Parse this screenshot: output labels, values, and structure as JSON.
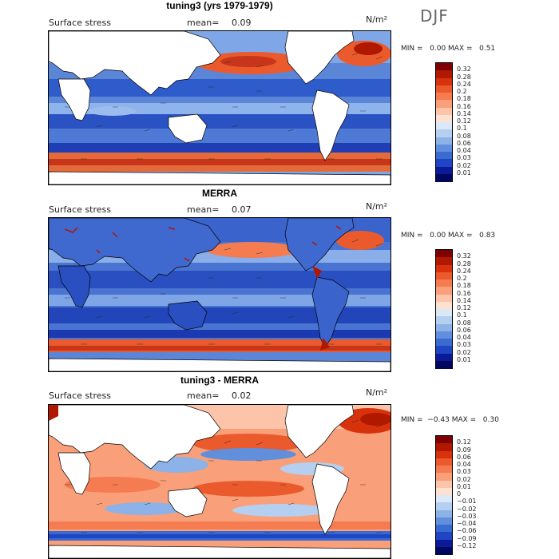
{
  "figure": {
    "season": "DJF",
    "panels": [
      {
        "title": "tuning3 (yrs 1979-1979)",
        "field": "Surface stress",
        "mean_label": "mean=",
        "mean_value": "0.09",
        "units": "N/m²",
        "stats_text": "MIN =   0.00 MAX =   0.51",
        "colorbar": {
          "labels": [
            "0.32",
            "0.28",
            "0.24",
            "0.2",
            "0.18",
            "0.16",
            "0.14",
            "0.12",
            "0.1",
            "0.08",
            "0.06",
            "0.04",
            "0.03",
            "0.02",
            "0.01"
          ],
          "colors": [
            "#7f0000",
            "#b01800",
            "#d8320c",
            "#ea5a2c",
            "#f47c50",
            "#f9a07a",
            "#fcc4a8",
            "#fde2d2",
            "#dbe8f7",
            "#b4cff0",
            "#8cb2e8",
            "#628fdc",
            "#3a6bd0",
            "#1f44c4",
            "#0a1a98",
            "#00085e"
          ]
        }
      },
      {
        "title": "MERRA",
        "field": "Surface stress",
        "mean_label": "mean=",
        "mean_value": "0.07",
        "units": "N/m²",
        "stats_text": "MIN =   0.00 MAX =   0.83",
        "colorbar": {
          "labels": [
            "0.32",
            "0.28",
            "0.24",
            "0.2",
            "0.18",
            "0.16",
            "0.14",
            "0.12",
            "0.1",
            "0.08",
            "0.06",
            "0.04",
            "0.03",
            "0.02",
            "0.01"
          ],
          "colors": [
            "#7f0000",
            "#b01800",
            "#d8320c",
            "#ea5a2c",
            "#f47c50",
            "#f9a07a",
            "#fcc4a8",
            "#fde2d2",
            "#dbe8f7",
            "#b4cff0",
            "#8cb2e8",
            "#628fdc",
            "#3a6bd0",
            "#1f44c4",
            "#0a1a98",
            "#00085e"
          ]
        }
      },
      {
        "title": "tuning3 - MERRA",
        "field": "Surface stress",
        "mean_label": "mean=",
        "mean_value": "0.02",
        "units": "N/m²",
        "stats_text": "MIN =  −0.43 MAX =   0.30",
        "colorbar": {
          "labels": [
            "0.12",
            "0.09",
            "0.06",
            "0.04",
            "0.03",
            "0.02",
            "0.01",
            "0",
            "−0.01",
            "−0.02",
            "−0.03",
            "−0.04",
            "−0.06",
            "−0.09",
            "−0.12"
          ],
          "colors": [
            "#7f0000",
            "#b01800",
            "#d8320c",
            "#ea5a2c",
            "#f47c50",
            "#f9a07a",
            "#fcc4a8",
            "#fde2d2",
            "#dbe8f7",
            "#b4cff0",
            "#8cb2e8",
            "#628fdc",
            "#3a6bd0",
            "#1f44c4",
            "#0a1a98",
            "#00085e"
          ]
        }
      }
    ]
  },
  "chart_data": [
    {
      "type": "heatmap",
      "title": "tuning3 (yrs 1979-1979)",
      "variable": "Surface stress",
      "units": "N/m²",
      "season": "DJF",
      "mean": 0.09,
      "min": 0.0,
      "max": 0.51,
      "colorbar_levels": [
        0.01,
        0.02,
        0.03,
        0.04,
        0.06,
        0.08,
        0.1,
        0.12,
        0.14,
        0.16,
        0.18,
        0.2,
        0.24,
        0.28,
        0.32
      ]
    },
    {
      "type": "heatmap",
      "title": "MERRA",
      "variable": "Surface stress",
      "units": "N/m²",
      "season": "DJF",
      "mean": 0.07,
      "min": 0.0,
      "max": 0.83,
      "colorbar_levels": [
        0.01,
        0.02,
        0.03,
        0.04,
        0.06,
        0.08,
        0.1,
        0.12,
        0.14,
        0.16,
        0.18,
        0.2,
        0.24,
        0.28,
        0.32
      ]
    },
    {
      "type": "heatmap",
      "title": "tuning3 - MERRA",
      "variable": "Surface stress",
      "units": "N/m²",
      "season": "DJF",
      "mean": 0.02,
      "min": -0.43,
      "max": 0.3,
      "colorbar_levels": [
        -0.12,
        -0.09,
        -0.06,
        -0.04,
        -0.03,
        -0.02,
        -0.01,
        0,
        0.01,
        0.02,
        0.03,
        0.04,
        0.06,
        0.09,
        0.12
      ]
    }
  ]
}
